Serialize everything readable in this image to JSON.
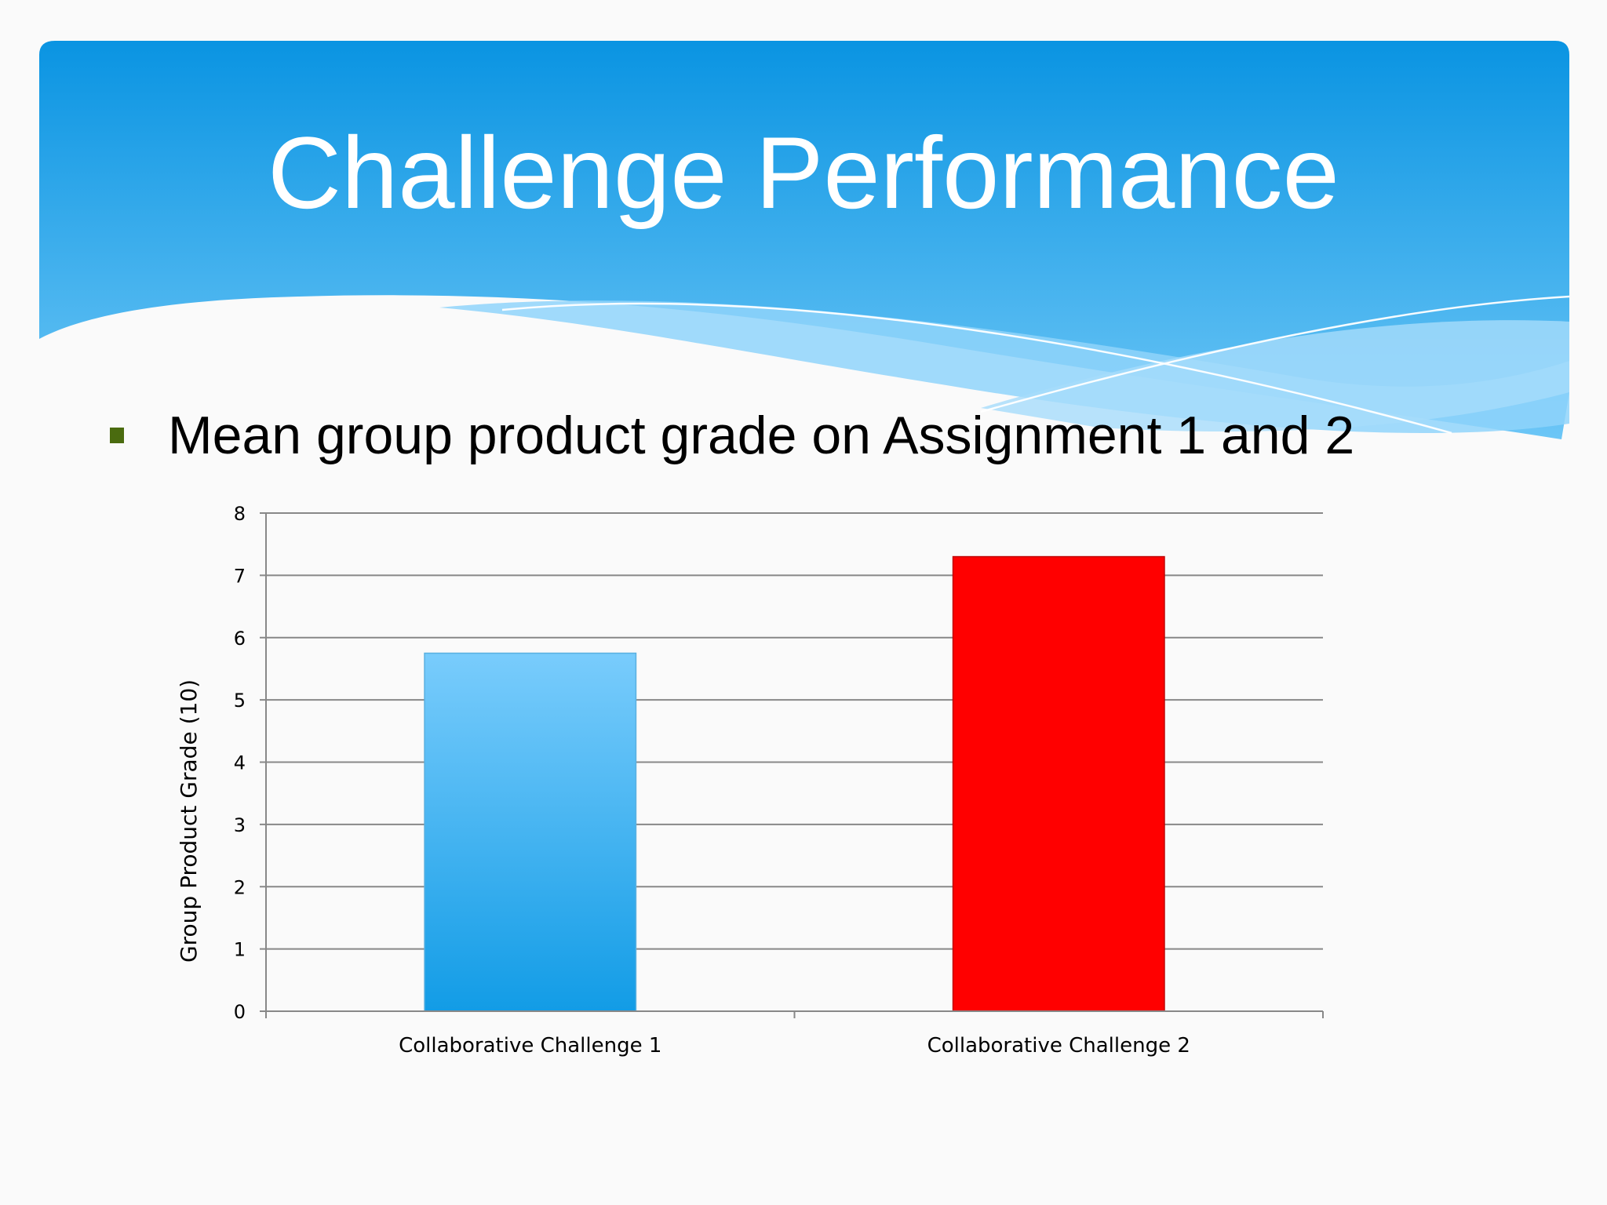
{
  "slide": {
    "title": "Challenge Performance",
    "bullet": "Mean group product grade on Assignment 1 and 2"
  },
  "colors": {
    "header_top": "#0a94e2",
    "header_bottom": "#6cc6f6",
    "bullet_marker": "#4a6b0f",
    "bar_1_top": "#79ccfc",
    "bar_1_bottom": "#129ce6",
    "bar_2": "#ff0000",
    "gridline": "#888888"
  },
  "chart_data": {
    "type": "bar",
    "categories": [
      "Collaborative Challenge 1",
      "Collaborative Challenge 2"
    ],
    "values": [
      5.75,
      7.3
    ],
    "title": "",
    "xlabel": "",
    "ylabel": "Group Product Grade (10)",
    "ylim": [
      0,
      8
    ],
    "yticks": [
      0,
      1,
      2,
      3,
      4,
      5,
      6,
      7,
      8
    ],
    "grid": true,
    "legend": "none"
  }
}
